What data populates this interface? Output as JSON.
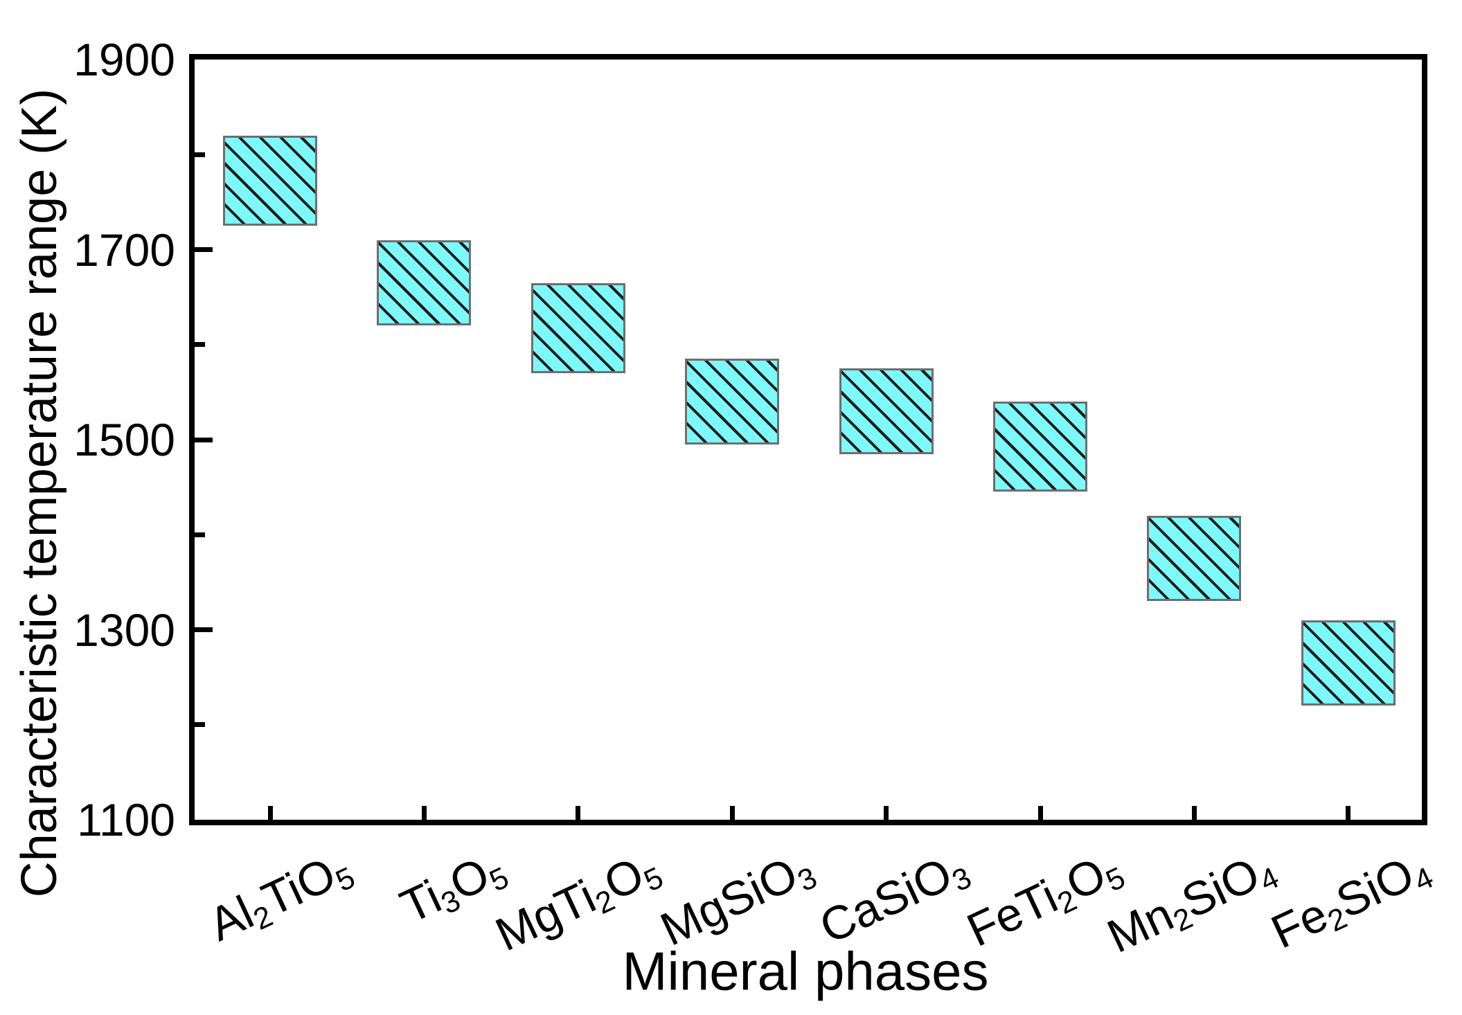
{
  "figure": {
    "background_color": "#FFFFFF",
    "frame_color": "#000000"
  },
  "chart_data": {
    "type": "bar",
    "subtype": "floating-range-bars",
    "title": "",
    "xlabel": "Mineral phases",
    "ylabel": "Characteristic temperature range (K)",
    "categories": [
      "Al2TiO5",
      "Ti3O5",
      "MgTi2O5",
      "MgSiO3",
      "CaSiO3",
      "FeTi2O5",
      "Mn2SiO4",
      "Fe2SiO4"
    ],
    "categories_formatted": [
      "Al|2|TiO|5",
      "Ti|3|O|5",
      "MgTi|2|O|5",
      "MgSiO|3",
      "CaSiO|3",
      "FeTi|2|O|5",
      "Mn|2|SiO|4",
      "Fe|2|SiO|4"
    ],
    "series": [
      {
        "name": "Characteristic temperature range",
        "unit": "K",
        "ranges": [
          {
            "category": "Al2TiO5",
            "low": 1725,
            "high": 1820
          },
          {
            "category": "Ti3O5",
            "low": 1620,
            "high": 1710
          },
          {
            "category": "MgTi2O5",
            "low": 1570,
            "high": 1665
          },
          {
            "category": "MgSiO3",
            "low": 1495,
            "high": 1585
          },
          {
            "category": "CaSiO3",
            "low": 1485,
            "high": 1575
          },
          {
            "category": "FeTi2O5",
            "low": 1445,
            "high": 1540
          },
          {
            "category": "Mn2SiO4",
            "low": 1330,
            "high": 1420
          },
          {
            "category": "Fe2SiO4",
            "low": 1220,
            "high": 1310
          }
        ]
      }
    ],
    "ylim": [
      1100,
      1900
    ],
    "y_major_ticks": [
      1900,
      1700,
      1500,
      1300,
      1100
    ],
    "y_minor_ticks": [
      1800,
      1600,
      1400,
      1200
    ],
    "x_tick_label_rotation_deg": -25,
    "ticks_direction": "in",
    "grid": false,
    "legend": false,
    "bar_style": {
      "fill": "#7DF9F9",
      "edge": "#6E6E6E",
      "hatch": "backslash-diagonal",
      "hatch_color": "#1C1C1C",
      "bar_width_fraction": 0.61
    }
  }
}
